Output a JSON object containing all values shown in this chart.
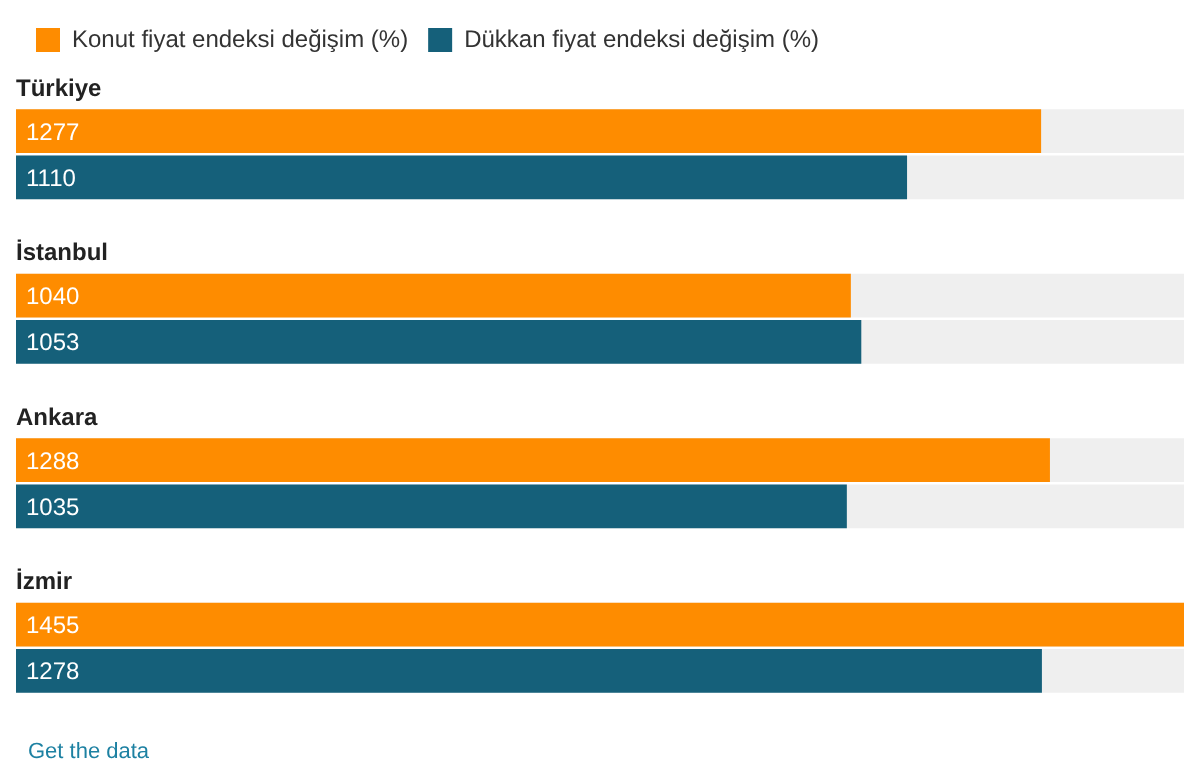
{
  "chart_data": {
    "type": "bar",
    "orientation": "horizontal",
    "categories": [
      "Türkiye",
      "İstanbul",
      "Ankara",
      "İzmir"
    ],
    "series": [
      {
        "name": "Konut fiyat endeksi değişim (%)",
        "color": "#fe8c00",
        "values": [
          1277,
          1040,
          1288,
          1455
        ]
      },
      {
        "name": "Dükkan fiyat endeksi değişim (%)",
        "color": "#15607a",
        "values": [
          1110,
          1053,
          1035,
          1278
        ]
      }
    ],
    "data_labels": true,
    "legend": "top left",
    "annotations": [
      "Get the data"
    ]
  }
}
